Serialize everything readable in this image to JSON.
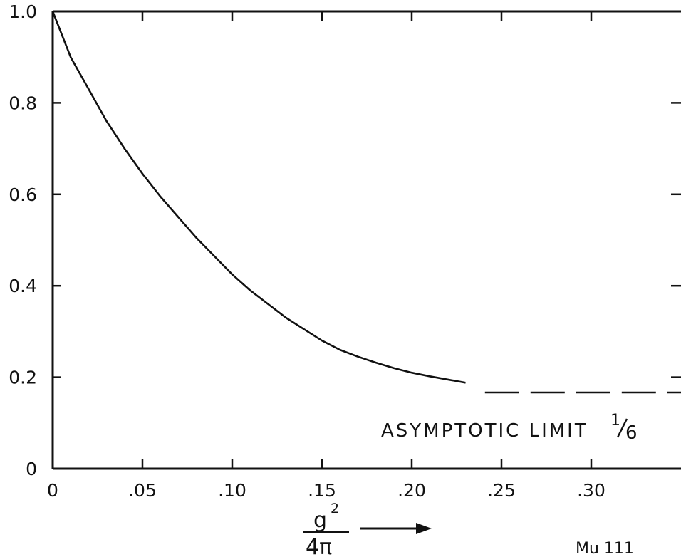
{
  "chart_data": {
    "type": "line",
    "title": "",
    "xlabel": {
      "numerator": "g",
      "power": "2",
      "denominator": "4π"
    },
    "ylabel": "",
    "xlim": [
      0,
      0.35
    ],
    "ylim": [
      0,
      1.0
    ],
    "grid": false,
    "x_tick_labels": [
      "0",
      ".05",
      ".10",
      ".15",
      ".20",
      ".25",
      ".30"
    ],
    "x_tick_values": [
      0,
      0.05,
      0.1,
      0.15,
      0.2,
      0.25,
      0.3
    ],
    "y_tick_labels": [
      "0",
      "0.2",
      "0.4",
      "0.6",
      "0.8",
      "1.0"
    ],
    "y_tick_values": [
      0,
      0.2,
      0.4,
      0.6,
      0.8,
      1.0
    ],
    "series": [
      {
        "x": [
          0,
          0.01,
          0.02,
          0.03,
          0.04,
          0.05,
          0.06,
          0.07,
          0.08,
          0.09,
          0.1,
          0.11,
          0.12,
          0.13,
          0.14,
          0.15,
          0.16,
          0.17,
          0.18,
          0.19,
          0.2,
          0.21,
          0.22,
          0.23
        ],
        "y": [
          1.0,
          0.9,
          0.83,
          0.76,
          0.7,
          0.645,
          0.595,
          0.55,
          0.505,
          0.465,
          0.425,
          0.39,
          0.36,
          0.33,
          0.305,
          0.28,
          0.26,
          0.245,
          0.232,
          0.22,
          0.21,
          0.202,
          0.195,
          0.188
        ]
      }
    ],
    "asymptote": {
      "y": 0.1667,
      "x_start": 0.24,
      "style": "dashed"
    },
    "annotation": {
      "text": "ASYMPTOTIC LIMIT",
      "fraction_num": "1",
      "fraction_den": "6"
    },
    "footer_label": "Mu 111"
  }
}
